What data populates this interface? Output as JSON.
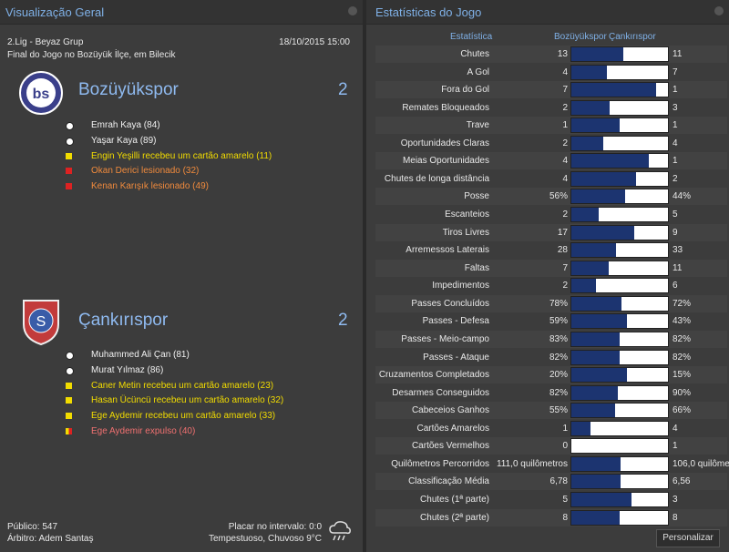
{
  "overview": {
    "title": "Visualização Geral",
    "competition": "2.Lig - Beyaz Grup",
    "datetime": "18/10/2015 15:00",
    "venue": "Final do Jogo no Bozüyük İlçe, em Bilecik",
    "home": {
      "name": "Bozüyükspor",
      "score": 2,
      "events": [
        {
          "type": "goal",
          "text": "Emrah Kaya (84)"
        },
        {
          "type": "goal",
          "text": "Yaşar Kaya (89)"
        },
        {
          "type": "yellow",
          "text": "Engin Yeşilli recebeu um cartão amarelo (11)"
        },
        {
          "type": "injury",
          "text": "Okan Derici lesionado (32)"
        },
        {
          "type": "injury",
          "text": "Kenan Karışık lesionado (49)"
        }
      ]
    },
    "away": {
      "name": "Çankırıspor",
      "score": 2,
      "events": [
        {
          "type": "goal",
          "text": "Muhammed Ali Çan (81)"
        },
        {
          "type": "goal",
          "text": "Murat Yılmaz (86)"
        },
        {
          "type": "yellow",
          "text": "Caner Metin recebeu um cartão amarelo (23)"
        },
        {
          "type": "yellow",
          "text": "Hasan Ücüncü recebeu um cartão amarelo (32)"
        },
        {
          "type": "yellow",
          "text": "Ege Aydemir recebeu um cartão amarelo (33)"
        },
        {
          "type": "red",
          "text": "Ege Aydemir expulso (40)"
        }
      ]
    },
    "attendance": "Público: 547",
    "referee": "Árbitro: Adem Santaş",
    "halftime": "Placar no intervalo: 0:0",
    "weather": "Tempestuoso, Chuvoso 9°C"
  },
  "stats": {
    "title": "Estatísticas do Jogo",
    "header": "Estatística",
    "rows": [
      {
        "label": "Chutes",
        "values": [
          13,
          11
        ]
      },
      {
        "label": "A Gol",
        "values": [
          4,
          7
        ]
      },
      {
        "label": "Fora do Gol",
        "values": [
          7,
          1
        ]
      },
      {
        "label": "Remates Bloqueados",
        "values": [
          2,
          3
        ]
      },
      {
        "label": "Trave",
        "values": [
          1,
          1
        ]
      },
      {
        "label": "Oportunidades Claras",
        "values": [
          2,
          4
        ]
      },
      {
        "label": "Meias Oportunidades",
        "values": [
          4,
          1
        ]
      },
      {
        "label": "Chutes de longa distância",
        "values": [
          4,
          2
        ]
      },
      {
        "label": "Posse",
        "values": [
          56,
          44
        ],
        "value_labels": [
          "56%",
          "44%"
        ]
      },
      {
        "label": "Escanteios",
        "values": [
          2,
          5
        ]
      },
      {
        "label": "Tiros Livres",
        "values": [
          17,
          9
        ]
      },
      {
        "label": "Arremessos Laterais",
        "values": [
          28,
          33
        ]
      },
      {
        "label": "Faltas",
        "values": [
          7,
          11
        ]
      },
      {
        "label": "Impedimentos",
        "values": [
          2,
          6
        ]
      },
      {
        "label": "Passes Concluídos",
        "values": [
          78,
          72
        ],
        "value_labels": [
          "78%",
          "72%"
        ]
      },
      {
        "label": "Passes - Defesa",
        "values": [
          59,
          43
        ],
        "value_labels": [
          "59%",
          "43%"
        ]
      },
      {
        "label": "Passes - Meio-campo",
        "values": [
          83,
          82
        ],
        "value_labels": [
          "83%",
          "82%"
        ]
      },
      {
        "label": "Passes - Ataque",
        "values": [
          82,
          82
        ],
        "value_labels": [
          "82%",
          "82%"
        ]
      },
      {
        "label": "Cruzamentos Completados",
        "values": [
          20,
          15
        ],
        "value_labels": [
          "20%",
          "15%"
        ]
      },
      {
        "label": "Desarmes Conseguidos",
        "values": [
          82,
          90
        ],
        "value_labels": [
          "82%",
          "90%"
        ]
      },
      {
        "label": "Cabeceios Ganhos",
        "values": [
          55,
          66
        ],
        "value_labels": [
          "55%",
          "66%"
        ]
      },
      {
        "label": "Cartões Amarelos",
        "values": [
          1,
          4
        ]
      },
      {
        "label": "Cartões Vermelhos",
        "values": [
          0,
          1
        ]
      },
      {
        "label": "Quilômetros Percorridos",
        "values": [
          111.0,
          106.0
        ],
        "value_labels": [
          "111,0 quilômetros",
          "106,0 quilômetros"
        ]
      },
      {
        "label": "Classificação Média",
        "values": [
          6.78,
          6.56
        ],
        "value_labels": [
          "6,78",
          "6,56"
        ]
      },
      {
        "label": "Chutes (1ª parte)",
        "values": [
          5,
          3
        ]
      },
      {
        "label": "Chutes (2ª parte)",
        "values": [
          8,
          8
        ]
      }
    ],
    "button": "Personalizar"
  }
}
